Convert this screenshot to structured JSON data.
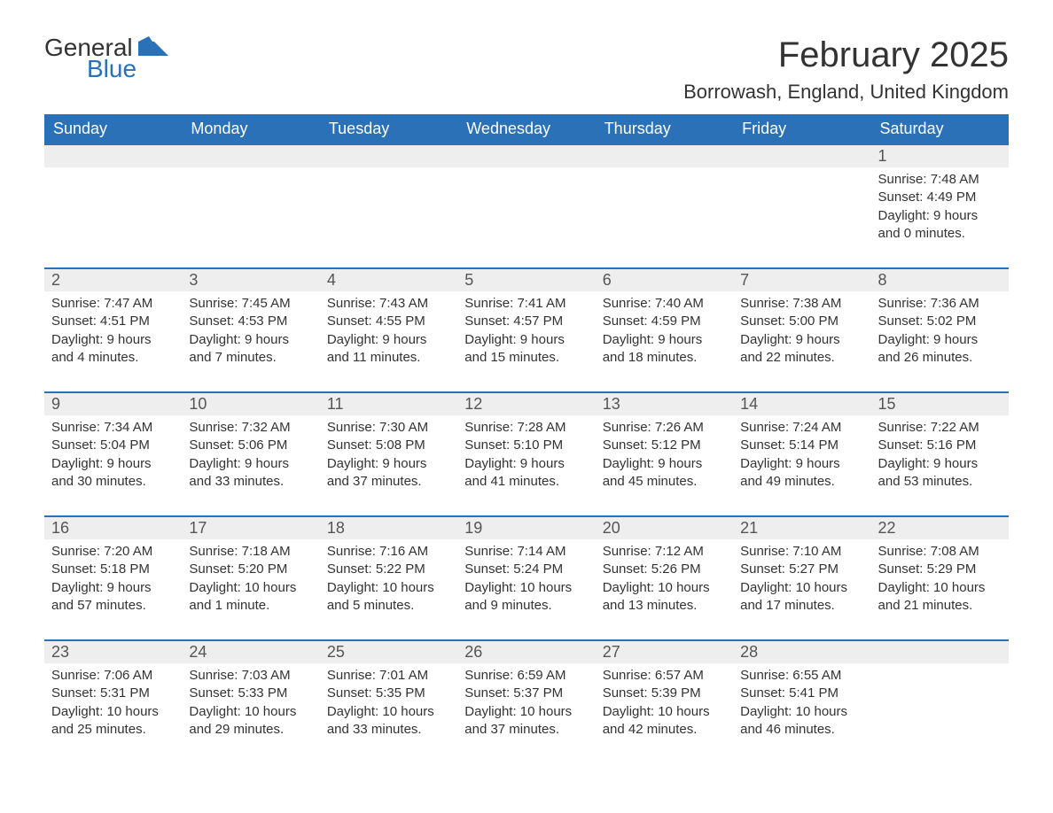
{
  "brand": {
    "word1": "General",
    "word2": "Blue"
  },
  "title": "February 2025",
  "location": "Borrowash, England, United Kingdom",
  "colors": {
    "header_bg": "#2a71b8",
    "header_text": "#ffffff",
    "daynum_bg": "#eeeeee",
    "row_border": "#2a71b8",
    "body_text": "#333333",
    "background": "#ffffff"
  },
  "typography": {
    "title_fontsize": 40,
    "location_fontsize": 22,
    "weekday_fontsize": 18,
    "daynum_fontsize": 18,
    "detail_fontsize": 15,
    "font_family": "Arial"
  },
  "layout": {
    "columns": 7,
    "rows": 5
  },
  "weekdays": [
    "Sunday",
    "Monday",
    "Tuesday",
    "Wednesday",
    "Thursday",
    "Friday",
    "Saturday"
  ],
  "weeks": [
    [
      null,
      null,
      null,
      null,
      null,
      null,
      {
        "n": "1",
        "sunrise": "Sunrise: 7:48 AM",
        "sunset": "Sunset: 4:49 PM",
        "day1": "Daylight: 9 hours",
        "day2": "and 0 minutes."
      }
    ],
    [
      {
        "n": "2",
        "sunrise": "Sunrise: 7:47 AM",
        "sunset": "Sunset: 4:51 PM",
        "day1": "Daylight: 9 hours",
        "day2": "and 4 minutes."
      },
      {
        "n": "3",
        "sunrise": "Sunrise: 7:45 AM",
        "sunset": "Sunset: 4:53 PM",
        "day1": "Daylight: 9 hours",
        "day2": "and 7 minutes."
      },
      {
        "n": "4",
        "sunrise": "Sunrise: 7:43 AM",
        "sunset": "Sunset: 4:55 PM",
        "day1": "Daylight: 9 hours",
        "day2": "and 11 minutes."
      },
      {
        "n": "5",
        "sunrise": "Sunrise: 7:41 AM",
        "sunset": "Sunset: 4:57 PM",
        "day1": "Daylight: 9 hours",
        "day2": "and 15 minutes."
      },
      {
        "n": "6",
        "sunrise": "Sunrise: 7:40 AM",
        "sunset": "Sunset: 4:59 PM",
        "day1": "Daylight: 9 hours",
        "day2": "and 18 minutes."
      },
      {
        "n": "7",
        "sunrise": "Sunrise: 7:38 AM",
        "sunset": "Sunset: 5:00 PM",
        "day1": "Daylight: 9 hours",
        "day2": "and 22 minutes."
      },
      {
        "n": "8",
        "sunrise": "Sunrise: 7:36 AM",
        "sunset": "Sunset: 5:02 PM",
        "day1": "Daylight: 9 hours",
        "day2": "and 26 minutes."
      }
    ],
    [
      {
        "n": "9",
        "sunrise": "Sunrise: 7:34 AM",
        "sunset": "Sunset: 5:04 PM",
        "day1": "Daylight: 9 hours",
        "day2": "and 30 minutes."
      },
      {
        "n": "10",
        "sunrise": "Sunrise: 7:32 AM",
        "sunset": "Sunset: 5:06 PM",
        "day1": "Daylight: 9 hours",
        "day2": "and 33 minutes."
      },
      {
        "n": "11",
        "sunrise": "Sunrise: 7:30 AM",
        "sunset": "Sunset: 5:08 PM",
        "day1": "Daylight: 9 hours",
        "day2": "and 37 minutes."
      },
      {
        "n": "12",
        "sunrise": "Sunrise: 7:28 AM",
        "sunset": "Sunset: 5:10 PM",
        "day1": "Daylight: 9 hours",
        "day2": "and 41 minutes."
      },
      {
        "n": "13",
        "sunrise": "Sunrise: 7:26 AM",
        "sunset": "Sunset: 5:12 PM",
        "day1": "Daylight: 9 hours",
        "day2": "and 45 minutes."
      },
      {
        "n": "14",
        "sunrise": "Sunrise: 7:24 AM",
        "sunset": "Sunset: 5:14 PM",
        "day1": "Daylight: 9 hours",
        "day2": "and 49 minutes."
      },
      {
        "n": "15",
        "sunrise": "Sunrise: 7:22 AM",
        "sunset": "Sunset: 5:16 PM",
        "day1": "Daylight: 9 hours",
        "day2": "and 53 minutes."
      }
    ],
    [
      {
        "n": "16",
        "sunrise": "Sunrise: 7:20 AM",
        "sunset": "Sunset: 5:18 PM",
        "day1": "Daylight: 9 hours",
        "day2": "and 57 minutes."
      },
      {
        "n": "17",
        "sunrise": "Sunrise: 7:18 AM",
        "sunset": "Sunset: 5:20 PM",
        "day1": "Daylight: 10 hours",
        "day2": "and 1 minute."
      },
      {
        "n": "18",
        "sunrise": "Sunrise: 7:16 AM",
        "sunset": "Sunset: 5:22 PM",
        "day1": "Daylight: 10 hours",
        "day2": "and 5 minutes."
      },
      {
        "n": "19",
        "sunrise": "Sunrise: 7:14 AM",
        "sunset": "Sunset: 5:24 PM",
        "day1": "Daylight: 10 hours",
        "day2": "and 9 minutes."
      },
      {
        "n": "20",
        "sunrise": "Sunrise: 7:12 AM",
        "sunset": "Sunset: 5:26 PM",
        "day1": "Daylight: 10 hours",
        "day2": "and 13 minutes."
      },
      {
        "n": "21",
        "sunrise": "Sunrise: 7:10 AM",
        "sunset": "Sunset: 5:27 PM",
        "day1": "Daylight: 10 hours",
        "day2": "and 17 minutes."
      },
      {
        "n": "22",
        "sunrise": "Sunrise: 7:08 AM",
        "sunset": "Sunset: 5:29 PM",
        "day1": "Daylight: 10 hours",
        "day2": "and 21 minutes."
      }
    ],
    [
      {
        "n": "23",
        "sunrise": "Sunrise: 7:06 AM",
        "sunset": "Sunset: 5:31 PM",
        "day1": "Daylight: 10 hours",
        "day2": "and 25 minutes."
      },
      {
        "n": "24",
        "sunrise": "Sunrise: 7:03 AM",
        "sunset": "Sunset: 5:33 PM",
        "day1": "Daylight: 10 hours",
        "day2": "and 29 minutes."
      },
      {
        "n": "25",
        "sunrise": "Sunrise: 7:01 AM",
        "sunset": "Sunset: 5:35 PM",
        "day1": "Daylight: 10 hours",
        "day2": "and 33 minutes."
      },
      {
        "n": "26",
        "sunrise": "Sunrise: 6:59 AM",
        "sunset": "Sunset: 5:37 PM",
        "day1": "Daylight: 10 hours",
        "day2": "and 37 minutes."
      },
      {
        "n": "27",
        "sunrise": "Sunrise: 6:57 AM",
        "sunset": "Sunset: 5:39 PM",
        "day1": "Daylight: 10 hours",
        "day2": "and 42 minutes."
      },
      {
        "n": "28",
        "sunrise": "Sunrise: 6:55 AM",
        "sunset": "Sunset: 5:41 PM",
        "day1": "Daylight: 10 hours",
        "day2": "and 46 minutes."
      },
      null
    ]
  ]
}
